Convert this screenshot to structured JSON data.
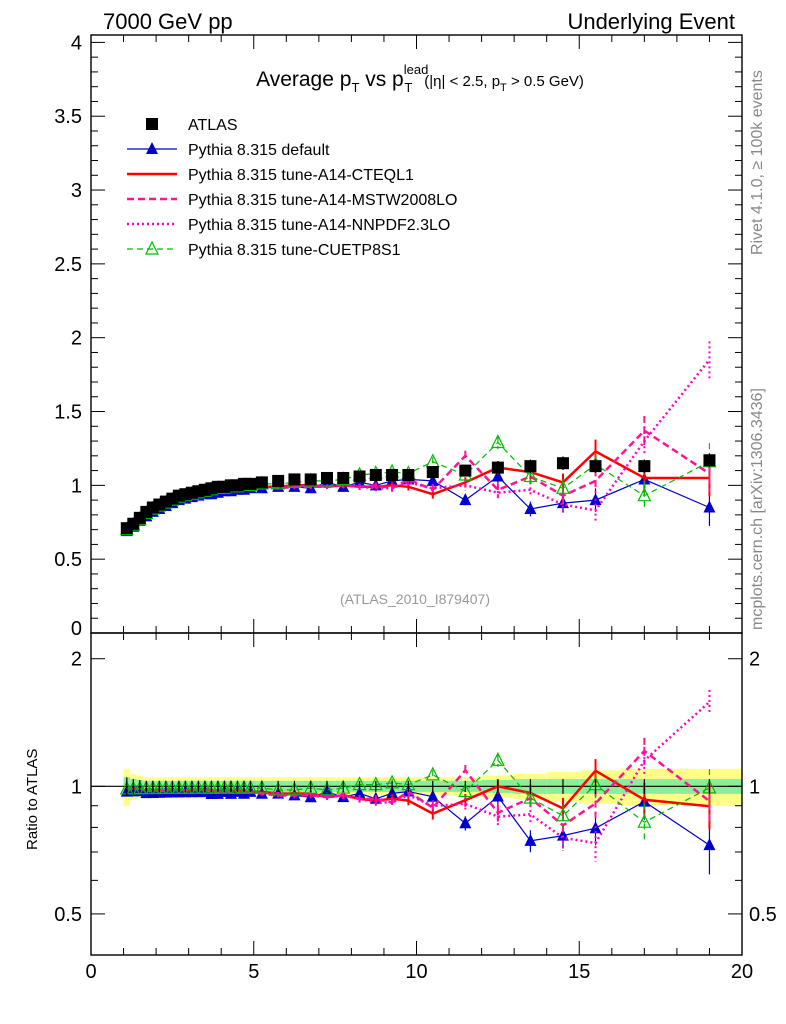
{
  "header": {
    "left": "7000 GeV pp",
    "right": "Underlying Event"
  },
  "title": {
    "main_a": "Average p",
    "sub_a": "T",
    "main_b": " vs p",
    "sup_b": "lead",
    "sub_b": "T",
    "cuts_a": "(|η| < 2.5, p",
    "cuts_sub": "T",
    "cuts_b": " > 0.5 GeV)"
  },
  "side_labels": {
    "rivet": "Rivet 4.1.0, ≥ 100k events",
    "mcplots": "mcplots.cern.ch [arXiv:1306.3436]"
  },
  "analysis_tag": "(ATLAS_2010_I879407)",
  "ratio_ylabel": "Ratio to ATLAS",
  "x_ticks": [
    "0",
    "5",
    "10",
    "15",
    "20"
  ],
  "main_y_ticks": [
    "0",
    "0.5",
    "1",
    "1.5",
    "2",
    "2.5",
    "3",
    "3.5",
    "4"
  ],
  "ratio_y_ticks": [
    "0.5",
    "1",
    "2"
  ],
  "legend": [
    {
      "label": "ATLAS",
      "color": "#000000"
    },
    {
      "label": "Pythia 8.315 default",
      "color": "#0000cc"
    },
    {
      "label": "Pythia 8.315 tune-A14-CTEQL1",
      "color": "#ff0000"
    },
    {
      "label": "Pythia 8.315 tune-A14-MSTW2008LO",
      "color": "#ff1493"
    },
    {
      "label": "Pythia 8.315 tune-A14-NNPDF2.3LO",
      "color": "#ff00cc"
    },
    {
      "label": "Pythia 8.315 tune-CUETP8S1",
      "color": "#00bb00"
    }
  ],
  "chart_data": {
    "type": "scatter",
    "xlim": [
      0,
      20
    ],
    "main_ylim": [
      0,
      4.05
    ],
    "ratio_ylim": [
      0.4,
      2.3
    ],
    "ratio_scale": "log",
    "x": [
      1.1,
      1.3,
      1.5,
      1.7,
      1.9,
      2.1,
      2.3,
      2.5,
      2.7,
      2.9,
      3.1,
      3.3,
      3.5,
      3.7,
      3.9,
      4.1,
      4.3,
      4.5,
      4.7,
      4.9,
      5.25,
      5.75,
      6.25,
      6.75,
      7.25,
      7.75,
      8.25,
      8.75,
      9.25,
      9.75,
      10.5,
      11.5,
      12.5,
      13.5,
      14.5,
      15.5,
      17.0,
      19.0
    ],
    "series": [
      {
        "name": "ATLAS",
        "values": [
          0.71,
          0.74,
          0.78,
          0.82,
          0.85,
          0.87,
          0.89,
          0.91,
          0.93,
          0.94,
          0.95,
          0.96,
          0.97,
          0.98,
          0.99,
          0.99,
          1.0,
          1.0,
          1.01,
          1.01,
          1.02,
          1.03,
          1.04,
          1.04,
          1.05,
          1.05,
          1.06,
          1.07,
          1.07,
          1.07,
          1.09,
          1.1,
          1.12,
          1.13,
          1.15,
          1.13,
          1.13,
          1.17
        ]
      },
      {
        "name": "Pythia 8.315 default",
        "values": [
          0.69,
          0.72,
          0.76,
          0.79,
          0.82,
          0.84,
          0.86,
          0.88,
          0.9,
          0.91,
          0.92,
          0.93,
          0.94,
          0.94,
          0.95,
          0.96,
          0.96,
          0.97,
          0.97,
          0.98,
          0.98,
          0.99,
          0.99,
          0.98,
          1.02,
          0.99,
          1.02,
          1.0,
          1.03,
          1.04,
          1.03,
          0.9,
          1.06,
          0.84,
          0.88,
          0.9,
          1.04,
          0.85
        ]
      },
      {
        "name": "Pythia 8.315 tune-A14-CTEQL1",
        "values": [
          0.7,
          0.73,
          0.77,
          0.8,
          0.83,
          0.85,
          0.87,
          0.89,
          0.91,
          0.92,
          0.93,
          0.94,
          0.95,
          0.96,
          0.96,
          0.97,
          0.97,
          0.98,
          0.98,
          0.98,
          0.99,
          0.99,
          1.0,
          1.0,
          0.99,
          1.0,
          0.99,
          0.99,
          1.0,
          0.99,
          0.94,
          1.02,
          1.12,
          1.09,
          1.02,
          1.23,
          1.05,
          1.05
        ]
      },
      {
        "name": "Pythia 8.315 tune-A14-MSTW2008LO",
        "values": [
          0.7,
          0.73,
          0.77,
          0.8,
          0.83,
          0.85,
          0.87,
          0.89,
          0.91,
          0.92,
          0.93,
          0.94,
          0.95,
          0.96,
          0.96,
          0.97,
          0.97,
          0.97,
          0.98,
          0.98,
          0.98,
          0.98,
          0.99,
          0.99,
          0.99,
          1.0,
          0.99,
          1.0,
          0.98,
          1.04,
          0.97,
          1.2,
          0.97,
          1.06,
          0.93,
          1.03,
          1.37,
          1.08
        ]
      },
      {
        "name": "Pythia 8.315 tune-A14-NNPDF2.3LO",
        "values": [
          0.7,
          0.73,
          0.77,
          0.8,
          0.83,
          0.85,
          0.87,
          0.89,
          0.91,
          0.92,
          0.93,
          0.94,
          0.95,
          0.95,
          0.96,
          0.96,
          0.97,
          0.97,
          0.98,
          0.98,
          0.99,
          0.99,
          0.99,
          1.0,
          0.99,
          1.0,
          0.99,
          0.98,
          0.98,
          1.02,
          0.98,
          1.0,
          0.95,
          0.97,
          0.87,
          0.83,
          1.3,
          1.85
        ]
      },
      {
        "name": "Pythia 8.315 tune-CUETP8S1",
        "values": [
          0.7,
          0.73,
          0.77,
          0.81,
          0.84,
          0.86,
          0.88,
          0.9,
          0.92,
          0.93,
          0.94,
          0.95,
          0.96,
          0.97,
          0.98,
          0.98,
          0.99,
          0.99,
          1.0,
          1.0,
          1.01,
          1.01,
          1.02,
          1.03,
          1.03,
          1.04,
          1.07,
          1.08,
          1.09,
          1.08,
          1.16,
          1.07,
          1.29,
          1.06,
          0.98,
          1.14,
          0.93,
          1.16
        ]
      }
    ],
    "model_errors": [
      0,
      0,
      0,
      0,
      0,
      0,
      0,
      0,
      0,
      0,
      0,
      0,
      0,
      0,
      0,
      0,
      0,
      0,
      0,
      0,
      0.02,
      0.02,
      0.03,
      0.03,
      0.03,
      0.04,
      0.04,
      0.04,
      0.05,
      0.05,
      0.06,
      0.07,
      0.09,
      0.1,
      0.12,
      0.16,
      0.2,
      0.25
    ],
    "atlas_band_stat": [
      0.05,
      0.04,
      0.035,
      0.03,
      0.03,
      0.03,
      0.03,
      0.03,
      0.03,
      0.03,
      0.03,
      0.03,
      0.03,
      0.03,
      0.03,
      0.03,
      0.03,
      0.03,
      0.03,
      0.03,
      0.03,
      0.03,
      0.03,
      0.03,
      0.03,
      0.03,
      0.03,
      0.03,
      0.03,
      0.03,
      0.03,
      0.03,
      0.035,
      0.04,
      0.04,
      0.04,
      0.04,
      0.04
    ],
    "atlas_band_total": [
      0.1,
      0.07,
      0.06,
      0.05,
      0.05,
      0.05,
      0.05,
      0.05,
      0.05,
      0.05,
      0.05,
      0.05,
      0.05,
      0.05,
      0.05,
      0.05,
      0.05,
      0.05,
      0.05,
      0.05,
      0.05,
      0.05,
      0.05,
      0.05,
      0.05,
      0.05,
      0.05,
      0.05,
      0.05,
      0.05,
      0.05,
      0.05,
      0.06,
      0.07,
      0.08,
      0.09,
      0.1,
      0.1
    ]
  }
}
